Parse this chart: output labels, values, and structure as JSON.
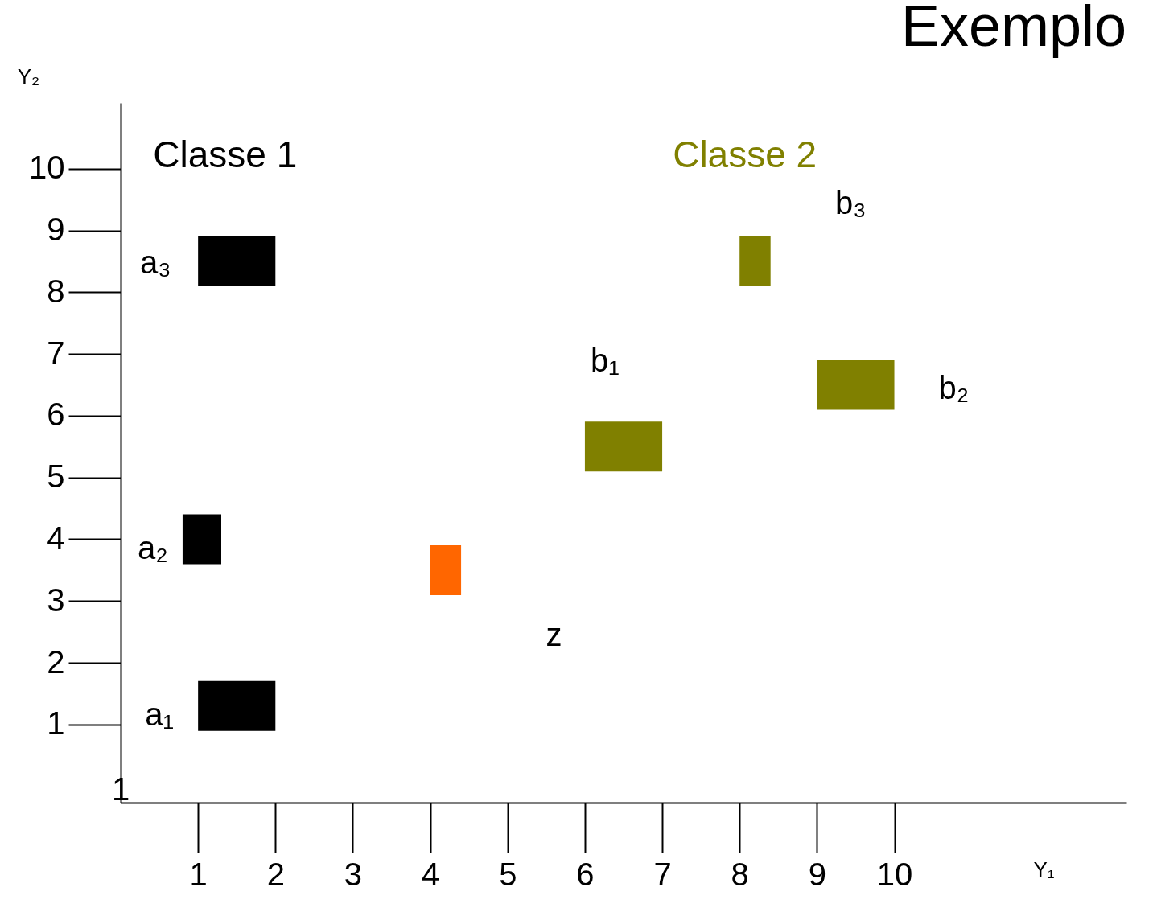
{
  "chart_data": {
    "type": "bar",
    "orientation": "horizontal",
    "title": "Exemplo",
    "xlabel": "Y₁",
    "ylabel": "Y₂",
    "xlim": [
      0,
      13
    ],
    "ylim": [
      -0.2,
      11
    ],
    "xticks": [
      1,
      2,
      3,
      4,
      5,
      6,
      7,
      8,
      9,
      10
    ],
    "yticks": [
      1,
      2,
      3,
      4,
      5,
      6,
      7,
      8,
      9,
      10
    ],
    "grid": false,
    "series": [
      {
        "name": "Classe 1",
        "color": "#000000",
        "x": [
          1.3,
          4.0,
          8.5
        ],
        "base": [
          1,
          0.8,
          1
        ],
        "values": [
          1,
          0.5,
          1
        ]
      },
      {
        "color": "#ff6600",
        "x": [
          3.5
        ],
        "base": [
          4
        ],
        "values": [
          0.4
        ]
      },
      {
        "name": "Classe 2",
        "color": "#808000",
        "x": [
          5.5,
          6.5,
          8.5
        ],
        "base": [
          6,
          9,
          8
        ],
        "values": [
          1,
          1,
          0.4
        ]
      }
    ],
    "annotations": [
      "a₁",
      "a₂",
      "a₃",
      "z",
      "b₁",
      "b₂",
      "b₃",
      "1"
    ]
  }
}
